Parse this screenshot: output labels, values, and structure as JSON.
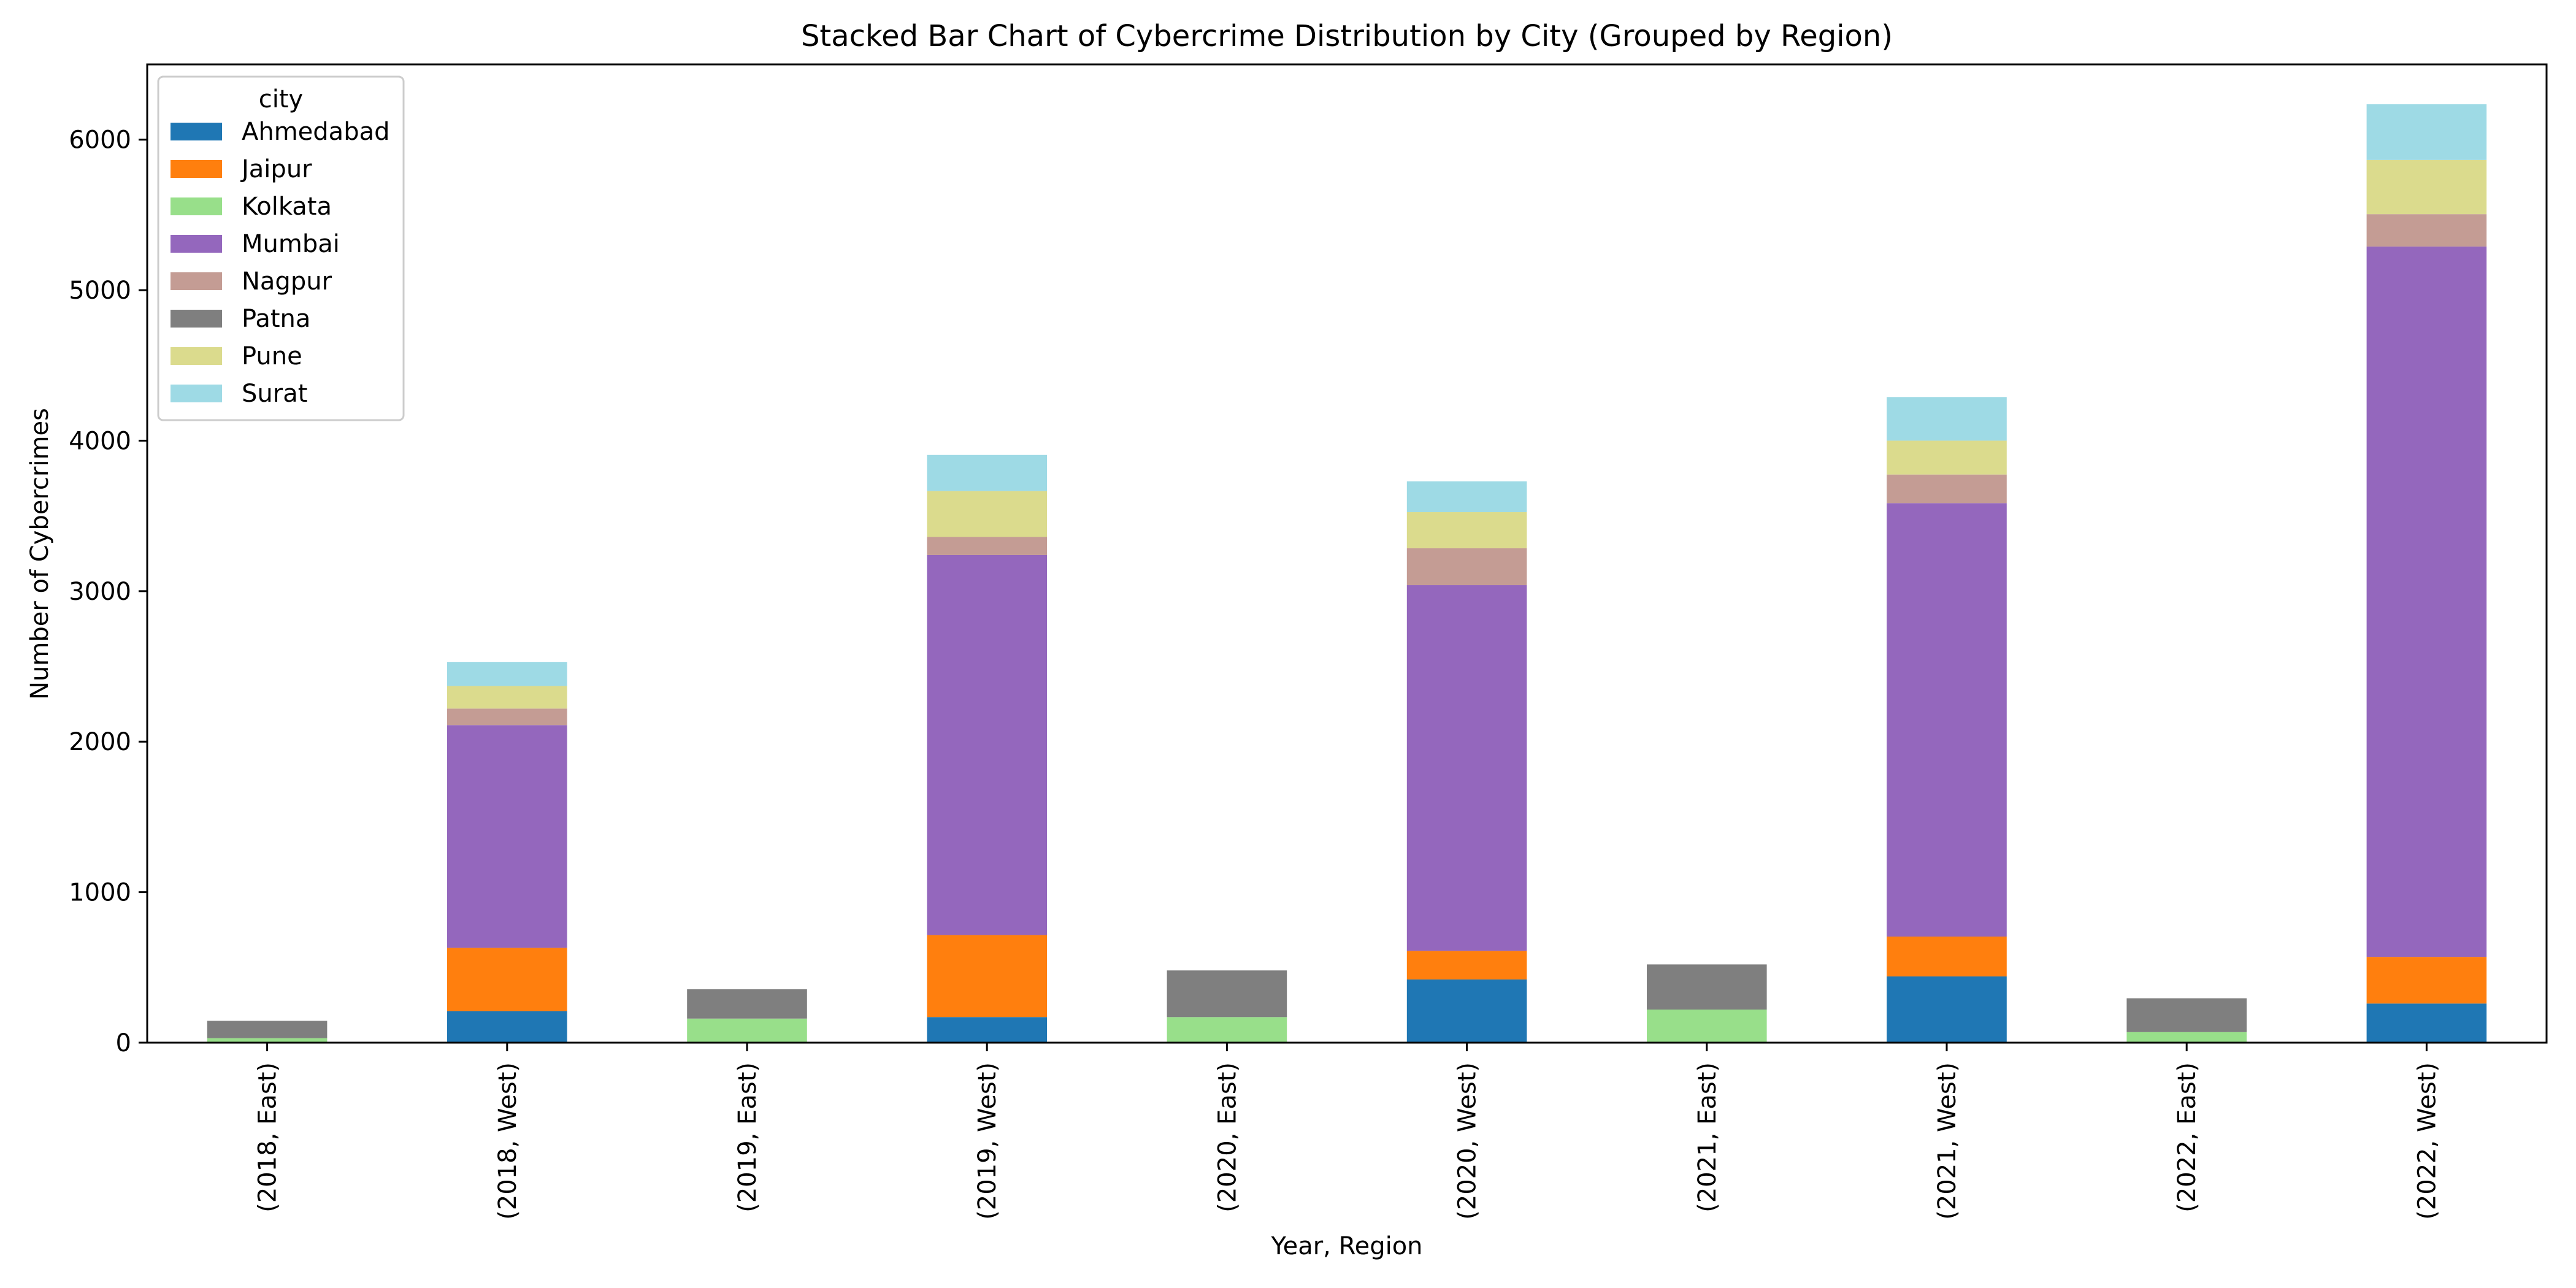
{
  "chart_data": {
    "type": "bar",
    "stacked": true,
    "title": "Stacked Bar Chart of Cybercrime Distribution by City (Grouped by Region)",
    "xlabel": "Year, Region",
    "ylabel": "Number of Cybercrimes",
    "ylim": [
      0,
      6500
    ],
    "yticks": [
      0,
      1000,
      2000,
      3000,
      4000,
      5000,
      6000
    ],
    "grid": false,
    "legend": {
      "title": "city",
      "placement": "top-left"
    },
    "categories": [
      "(2018, East)",
      "(2018, West)",
      "(2019, East)",
      "(2019, West)",
      "(2020, East)",
      "(2020, West)",
      "(2021, East)",
      "(2021, West)",
      "(2022, East)",
      "(2022, West)"
    ],
    "series": [
      {
        "name": "Ahmedabad",
        "color": "#1f77b4",
        "values": [
          0,
          210,
          0,
          170,
          0,
          420,
          0,
          440,
          0,
          260
        ]
      },
      {
        "name": "Jaipur",
        "color": "#ff7f0e",
        "values": [
          0,
          420,
          0,
          545,
          0,
          190,
          0,
          265,
          0,
          310
        ]
      },
      {
        "name": "Kolkata",
        "color": "#98df8a",
        "values": [
          30,
          0,
          160,
          0,
          170,
          0,
          220,
          0,
          70,
          0
        ]
      },
      {
        "name": "Mumbai",
        "color": "#9467bd",
        "values": [
          0,
          1480,
          0,
          2525,
          0,
          2430,
          0,
          2880,
          0,
          4720
        ]
      },
      {
        "name": "Nagpur",
        "color": "#c49c94",
        "values": [
          0,
          110,
          0,
          120,
          0,
          245,
          0,
          190,
          0,
          215
        ]
      },
      {
        "name": "Patna",
        "color": "#7f7f7f",
        "values": [
          115,
          0,
          195,
          0,
          310,
          0,
          300,
          0,
          225,
          0
        ]
      },
      {
        "name": "Pune",
        "color": "#dbdb8d",
        "values": [
          0,
          150,
          0,
          305,
          0,
          240,
          0,
          225,
          0,
          360
        ]
      },
      {
        "name": "Surat",
        "color": "#9edae5",
        "values": [
          0,
          160,
          0,
          240,
          0,
          205,
          0,
          290,
          0,
          370
        ]
      }
    ]
  }
}
